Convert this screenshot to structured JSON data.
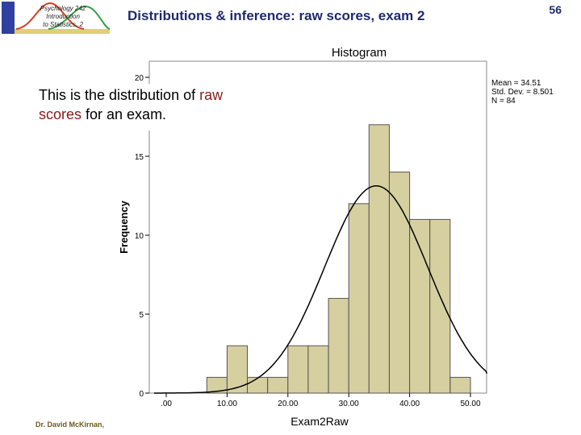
{
  "logo": {
    "line1": "Psychology 242",
    "line2": "Introduction",
    "line3": "to Statistics, 2"
  },
  "slide_title": "Distributions & inference: raw scores, exam 2",
  "page_number": "56",
  "caption": {
    "part1": "This is the distribution of ",
    "hl1": "raw",
    "part2": "",
    "hl2": "scores",
    "part3": " for an exam."
  },
  "footer": "Dr. David McKirnan,",
  "chart_data": {
    "type": "bar",
    "title": "Histogram",
    "xlabel": "Exam2Raw",
    "ylabel": "Frequency",
    "xlim": [
      -2,
      53
    ],
    "ylim": [
      0,
      20
    ],
    "bin_width": 3.33,
    "x_ticks": [
      0,
      10,
      20,
      30,
      40,
      50
    ],
    "x_tick_labels": [
      ".00",
      "10.00",
      "20.00",
      "30.00",
      "40.00",
      "50.00"
    ],
    "y_ticks": [
      0,
      5,
      10,
      15,
      20
    ],
    "bins": [
      {
        "start": 6.67,
        "value": 1
      },
      {
        "start": 10.0,
        "value": 3
      },
      {
        "start": 13.33,
        "value": 1
      },
      {
        "start": 16.67,
        "value": 1
      },
      {
        "start": 20.0,
        "value": 3
      },
      {
        "start": 23.33,
        "value": 3
      },
      {
        "start": 26.67,
        "value": 6
      },
      {
        "start": 30.0,
        "value": 12
      },
      {
        "start": 33.33,
        "value": 17
      },
      {
        "start": 36.67,
        "value": 14
      },
      {
        "start": 40.0,
        "value": 11
      },
      {
        "start": 43.33,
        "value": 11
      },
      {
        "start": 46.67,
        "value": 1
      }
    ],
    "normal_curve": {
      "mean": 34.51,
      "sd": 8.501,
      "n": 84
    },
    "stats_text": [
      "Mean = 34.51",
      "Std. Dev. = 8.501",
      "N = 84"
    ],
    "bar_fill": "#d6cfa0",
    "bar_stroke": "#555555",
    "grid": false
  }
}
